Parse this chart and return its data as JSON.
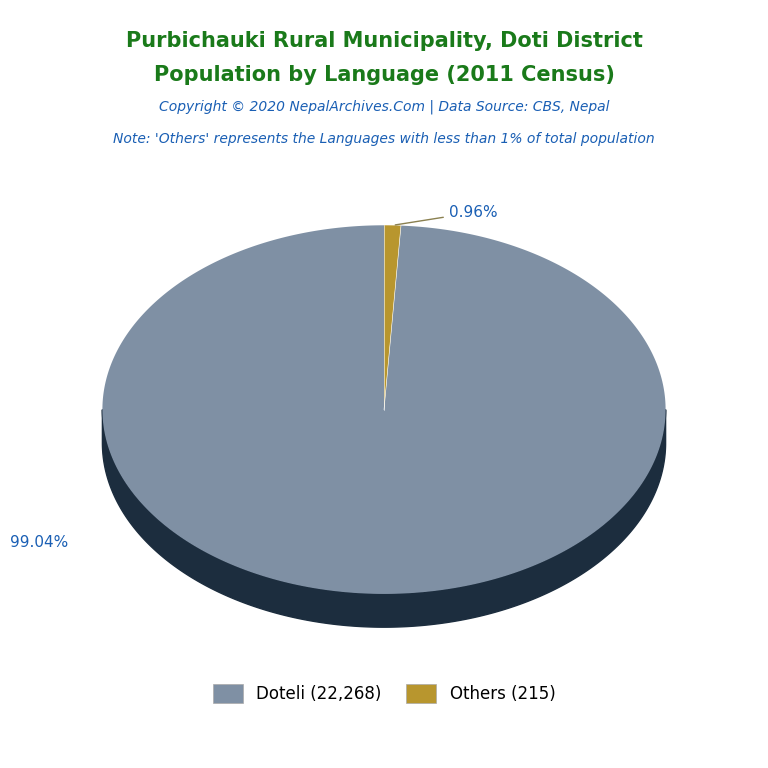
{
  "title_line1": "Purbichauki Rural Municipality, Doti District",
  "title_line2": "Population by Language (2011 Census)",
  "title_color": "#1a7a1a",
  "copyright_text": "Copyright © 2020 NepalArchives.Com | Data Source: CBS, Nepal",
  "copyright_color": "#1a5fb4",
  "note_text": "Note: 'Others' represents the Languages with less than 1% of total population",
  "note_color": "#1a5fb4",
  "labels": [
    "Doteli",
    "Others"
  ],
  "values": [
    22268,
    215
  ],
  "percentages": [
    99.04,
    0.96
  ],
  "colors": [
    "#7f90a4",
    "#b8962e"
  ],
  "shadow_color": "#1c2d3e",
  "label_color": "#1a5fb4",
  "legend_labels": [
    "Doteli (22,268)",
    "Others (215)"
  ],
  "background_color": "#ffffff",
  "title_fontsize": 15,
  "copyright_fontsize": 10,
  "note_fontsize": 10,
  "label_fontsize": 11,
  "legend_fontsize": 12
}
